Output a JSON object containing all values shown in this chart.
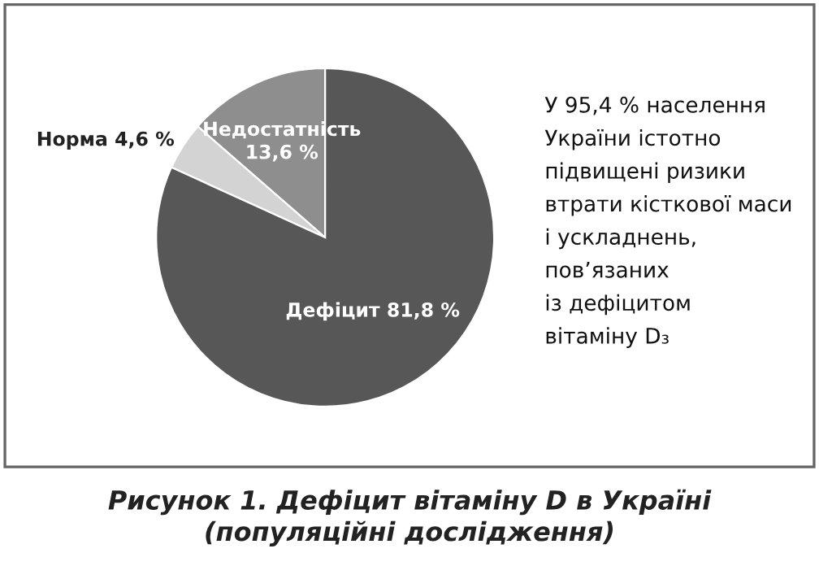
{
  "chart_data": {
    "type": "pie",
    "title": "Рисунок 1. Дефіцит вітаміну D в Україні\n(популяційні дослідження)",
    "categories": [
      "Недостатність",
      "Норма",
      "Дефіцит"
    ],
    "values": [
      13.6,
      4.6,
      81.8
    ],
    "value_labels": [
      "13,6 %",
      "4,6 %",
      "81,8 %"
    ],
    "colors": [
      "#8e8e8e",
      "#d3d3d3",
      "#575757"
    ],
    "annotations": [
      "У 95,4 % населення\nУкраїни істотно\nпідвищені ризики\nвтрати кісткової маси\nі ускладнень,\nпов’язаних\nіз дефіцитом\nвітаміну D₃"
    ],
    "legend": false
  }
}
